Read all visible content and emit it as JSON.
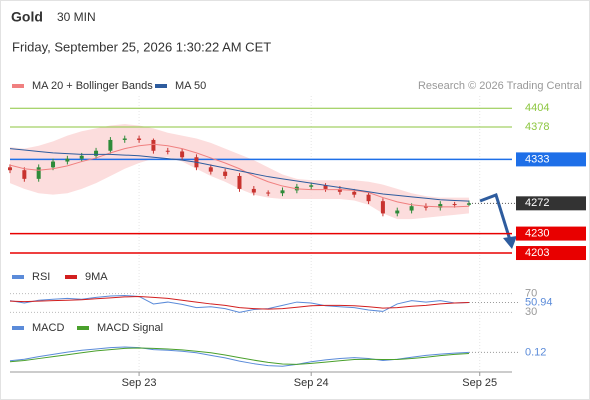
{
  "chart_data": [
    {
      "type": "candlestick",
      "title": "Gold",
      "timeframe": "30 MIN",
      "subtitle": "Friday, September 25, 2026 1:30:22 AM CET",
      "source": "Research © 2026 Trading Central",
      "x": [
        0,
        4,
        8,
        12,
        16,
        20,
        24,
        28,
        32,
        36,
        40,
        44,
        48,
        52,
        56,
        60,
        64,
        68,
        72,
        76,
        80,
        84,
        88,
        92,
        96,
        100,
        104,
        108,
        112,
        116,
        120,
        124,
        128
      ],
      "open": [
        4322,
        4318,
        4306,
        4322,
        4330,
        4334,
        4338,
        4345,
        4360,
        4362,
        4360,
        4345,
        4344,
        4336,
        4322,
        4316,
        4310,
        4292,
        4287,
        4286,
        4290,
        4295,
        4297,
        4292,
        4288,
        4284,
        4275,
        4258,
        4262,
        4268,
        4266,
        4271,
        4270
      ],
      "high": [
        4326,
        4322,
        4326,
        4334,
        4338,
        4342,
        4349,
        4364,
        4366,
        4366,
        4362,
        4349,
        4348,
        4340,
        4326,
        4320,
        4314,
        4296,
        4290,
        4294,
        4299,
        4301,
        4300,
        4296,
        4292,
        4288,
        4279,
        4266,
        4272,
        4272,
        4275,
        4274,
        4276
      ],
      "low": [
        4314,
        4302,
        4302,
        4318,
        4326,
        4330,
        4334,
        4341,
        4356,
        4356,
        4341,
        4340,
        4332,
        4318,
        4312,
        4306,
        4288,
        4283,
        4282,
        4282,
        4286,
        4291,
        4288,
        4284,
        4280,
        4271,
        4254,
        4254,
        4258,
        4262,
        4262,
        4266,
        4268
      ],
      "close": [
        4318,
        4306,
        4322,
        4330,
        4334,
        4338,
        4345,
        4360,
        4362,
        4360,
        4345,
        4344,
        4336,
        4322,
        4316,
        4310,
        4292,
        4287,
        4286,
        4290,
        4295,
        4297,
        4292,
        4288,
        4284,
        4275,
        4258,
        4262,
        4268,
        4266,
        4271,
        4270,
        4272
      ],
      "up_color": "#2e8b3a",
      "down_color": "#c8332f",
      "series": [
        {
          "name": "MA 20 + Bollinger Bands",
          "color": "#f08080",
          "band_color": "#fbd5d5",
          "values": [
            4325,
            4320,
            4318,
            4320,
            4324,
            4330,
            4335,
            4342,
            4348,
            4352,
            4354,
            4352,
            4348,
            4342,
            4335,
            4328,
            4320,
            4310,
            4302,
            4296,
            4292,
            4291,
            4291,
            4291,
            4290,
            4287,
            4280,
            4274,
            4270,
            4268,
            4267,
            4267,
            4268
          ],
          "upper": [
            4350,
            4348,
            4352,
            4358,
            4366,
            4372,
            4376,
            4380,
            4382,
            4380,
            4376,
            4370,
            4366,
            4362,
            4356,
            4348,
            4340,
            4332,
            4322,
            4312,
            4306,
            4304,
            4304,
            4304,
            4304,
            4302,
            4298,
            4292,
            4286,
            4282,
            4280,
            4280,
            4280
          ],
          "lower": [
            4300,
            4292,
            4286,
            4284,
            4286,
            4292,
            4300,
            4310,
            4320,
            4328,
            4334,
            4336,
            4330,
            4320,
            4310,
            4302,
            4292,
            4284,
            4280,
            4278,
            4278,
            4278,
            4278,
            4278,
            4276,
            4270,
            4258,
            4250,
            4250,
            4252,
            4254,
            4256,
            4258
          ]
        },
        {
          "name": "MA 50",
          "color": "#2e5c9e",
          "values": [
            4348,
            4346,
            4344,
            4342,
            4341,
            4340,
            4340,
            4340,
            4339,
            4338,
            4336,
            4334,
            4332,
            4329,
            4325,
            4321,
            4317,
            4313,
            4309,
            4306,
            4303,
            4300,
            4297,
            4294,
            4291,
            4288,
            4285,
            4283,
            4281,
            4279,
            4277,
            4276,
            4275
          ]
        }
      ],
      "levels": [
        {
          "value": 4404,
          "color": "#8cc63f",
          "boxed": false
        },
        {
          "value": 4378,
          "color": "#8cc63f",
          "boxed": false
        },
        {
          "value": 4333,
          "color": "#1e6fe8",
          "boxed": true
        },
        {
          "value": 4230,
          "color": "#e80000",
          "boxed": true
        },
        {
          "value": 4203,
          "color": "#e80000",
          "boxed": true
        }
      ],
      "last_price": 4272,
      "last_price_color": "#333333",
      "xlim": [
        0,
        140
      ],
      "ylim": [
        4185,
        4421
      ],
      "xticks": [
        {
          "value": 36,
          "label": "Sep 23"
        },
        {
          "value": 84,
          "label": "Sep 24"
        },
        {
          "value": 131,
          "label": "Sep 25"
        }
      ]
    },
    {
      "type": "line",
      "x": [
        0,
        4,
        8,
        12,
        16,
        20,
        24,
        28,
        32,
        36,
        40,
        44,
        48,
        52,
        56,
        60,
        64,
        68,
        72,
        76,
        80,
        84,
        88,
        92,
        96,
        100,
        104,
        108,
        112,
        116,
        120,
        124,
        128
      ],
      "series": [
        {
          "name": "RSI",
          "color": "#5b8bd9",
          "values": [
            55,
            50,
            56,
            58,
            60,
            58,
            62,
            65,
            66,
            64,
            48,
            52,
            47,
            40,
            42,
            38,
            30,
            36,
            38,
            45,
            52,
            50,
            44,
            42,
            40,
            35,
            32,
            48,
            55,
            52,
            55,
            50,
            50.94
          ]
        },
        {
          "name": "9MA",
          "color": "#d21f1f",
          "values": [
            54,
            53,
            54,
            55,
            56,
            57,
            59,
            61,
            63,
            64,
            62,
            60,
            56,
            52,
            48,
            45,
            40,
            38,
            37,
            38,
            41,
            44,
            45,
            45,
            44,
            42,
            39,
            40,
            43,
            45,
            48,
            50,
            51
          ]
        }
      ],
      "xlim": [
        0,
        140
      ],
      "ylim": [
        20,
        80
      ],
      "yticks": [
        30,
        70
      ]
    },
    {
      "type": "line",
      "x": [
        0,
        4,
        8,
        12,
        16,
        20,
        24,
        28,
        32,
        36,
        40,
        44,
        48,
        52,
        56,
        60,
        64,
        68,
        72,
        76,
        80,
        84,
        88,
        92,
        96,
        100,
        104,
        108,
        112,
        116,
        120,
        124,
        128
      ],
      "series": [
        {
          "name": "MACD",
          "color": "#5b8bd9",
          "values": [
            -2.5,
            -2,
            -1.2,
            -0.5,
            0.2,
            0.8,
            1.2,
            1.6,
            1.8,
            1.6,
            1.0,
            0.8,
            0.5,
            0,
            -0.8,
            -1.6,
            -2.6,
            -3.4,
            -4,
            -4.2,
            -3.6,
            -2.8,
            -2.2,
            -1.8,
            -1.5,
            -1.8,
            -2.4,
            -2,
            -1.4,
            -0.8,
            -0.4,
            -0.1,
            0.12
          ]
        },
        {
          "name": "MACD Signal",
          "color": "#4aa02c",
          "values": [
            -2.8,
            -2.4,
            -1.8,
            -1.2,
            -0.6,
            0,
            0.6,
            1.0,
            1.4,
            1.5,
            1.4,
            1.2,
            0.9,
            0.5,
            0,
            -0.7,
            -1.5,
            -2.3,
            -3,
            -3.5,
            -3.6,
            -3.3,
            -2.9,
            -2.5,
            -2.1,
            -2.0,
            -2.1,
            -2.1,
            -1.8,
            -1.4,
            -0.9,
            -0.5,
            -0.2
          ]
        }
      ],
      "xlim": [
        0,
        140
      ],
      "ylim": [
        -6,
        4
      ]
    }
  ]
}
